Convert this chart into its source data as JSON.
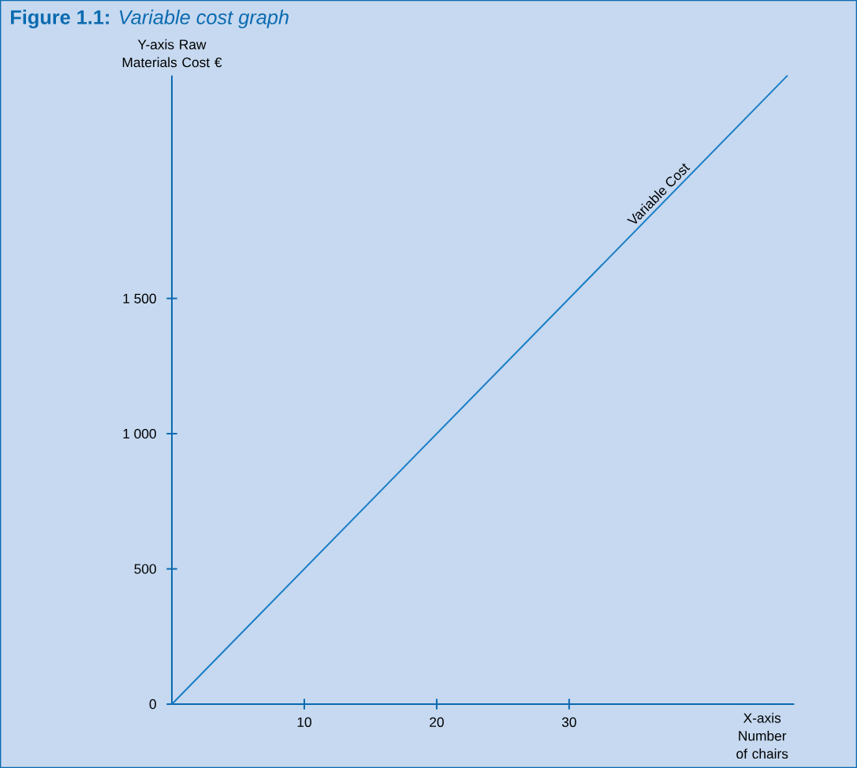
{
  "chart_data": {
    "type": "line",
    "title": "**Figure 1.1:** *Variable cost graph*",
    "ylabel": "Y-axis Raw Materials Cost €",
    "xlabel": "X-axis Number of chairs",
    "x": [
      0,
      46.5
    ],
    "series": [
      {
        "name": "Variable Cost",
        "color": "#1a7dc6",
        "values": [
          0,
          2325
        ]
      }
    ],
    "xlim": [
      0,
      47
    ],
    "ylim": [
      0,
      2325
    ],
    "xticks": [
      10,
      20,
      30
    ],
    "yticks": [
      0,
      500,
      {
        "value": 1000,
        "label": "1 000"
      },
      {
        "value": 1500,
        "label": "1 500"
      }
    ]
  }
}
